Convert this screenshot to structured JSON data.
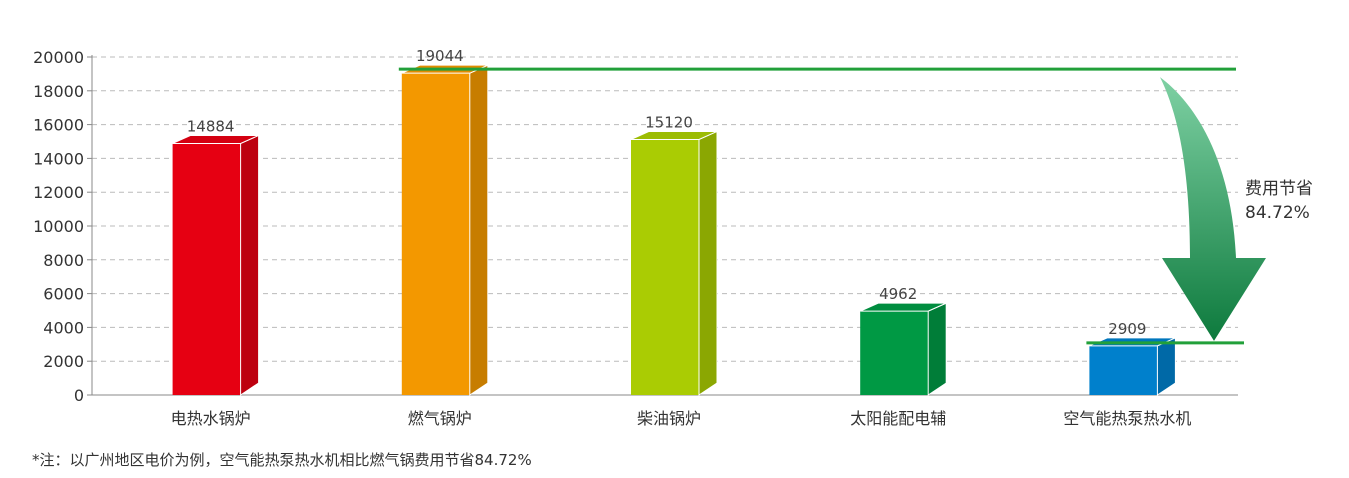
{
  "chart_data": {
    "type": "bar",
    "categories": [
      "电热水锅炉",
      "燃气锅炉",
      "柴油锅炉",
      "太阳能配电辅",
      "空气能热泵热水机"
    ],
    "values": [
      14884,
      19044,
      15120,
      4962,
      2909
    ],
    "value_labels": [
      "14884",
      "19044",
      "15120",
      "4962",
      "2909"
    ],
    "y_ticks": [
      "0",
      "2000",
      "4000",
      "6000",
      "8000",
      "10000",
      "12000",
      "14000",
      "16000",
      "18000",
      "20000"
    ],
    "ylim": [
      0,
      20000
    ],
    "grid": true,
    "title": "",
    "xlabel": "",
    "ylabel": ""
  },
  "annotation": {
    "line1": "费用节省",
    "line2": "84.72%"
  },
  "footnote": "*注：以广州地区电价为例，空气能热泵热水机相比燃气锅费用节省84.72%",
  "colors": {
    "bars": [
      "#e60012",
      "#f39800",
      "#aacc03",
      "#009944",
      "#0080cc"
    ],
    "reference_line": "#22a03a",
    "arrow_top": "#7fd1a4",
    "arrow_bottom": "#0d7a3d"
  }
}
